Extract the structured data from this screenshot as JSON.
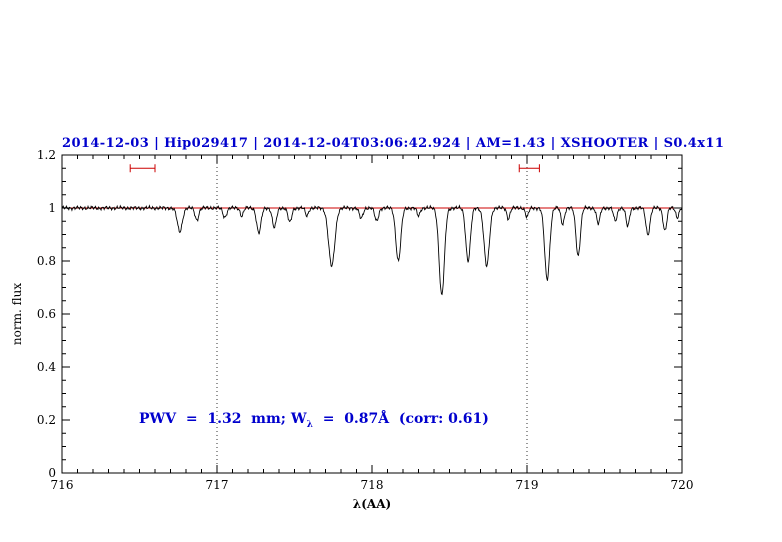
{
  "header": {
    "title": "2014-12-03 | Hip029417 | 2014-12-04T03:06:42.924 | AM=1.43 | XSHOOTER | S0.4x11",
    "color": "#0000cd"
  },
  "annotation": {
    "part1": "PWV  =  1.32  mm; W",
    "sub": "λ",
    "part2": "  =  0.87Å  (corr: 0.61)",
    "color": "#0000cd"
  },
  "chart_data": {
    "type": "line",
    "title": "2014-12-03 | Hip029417 | 2014-12-04T03:06:42.924 | AM=1.43 | XSHOOTER | S0.4x11",
    "xlabel": "λ(AA)",
    "ylabel": "norm. flux",
    "xlim": [
      716,
      720
    ],
    "ylim": [
      0,
      1.2
    ],
    "x_major_ticks": [
      716,
      717,
      718,
      719,
      720
    ],
    "x_tick_labels": [
      "716",
      "717",
      "718",
      "719",
      "720"
    ],
    "x_minor_step": 0.1,
    "y_major_ticks": [
      0,
      0.2,
      0.4,
      0.6,
      0.8,
      1.0,
      1.2
    ],
    "y_tick_labels": [
      "0",
      "0.2",
      "0.4",
      "0.6",
      "0.8",
      "1",
      "1.2"
    ],
    "y_minor_step": 0.05,
    "grid": false,
    "line_color": "#000000",
    "continuum": 1.0,
    "continuum_color": "#cc0000",
    "dotted_vlines": [
      717,
      719
    ],
    "vline_color": "#000000",
    "interval_markers": [
      {
        "x_start": 716.44,
        "x_end": 716.6,
        "y": 1.15,
        "color": "#cc0000"
      },
      {
        "x_start": 718.95,
        "x_end": 719.08,
        "y": 1.15,
        "color": "#cc0000"
      }
    ],
    "absorption_lines": [
      {
        "c": 716.76,
        "d": 0.09,
        "s": 0.016
      },
      {
        "c": 716.87,
        "d": 0.045,
        "s": 0.012
      },
      {
        "c": 717.05,
        "d": 0.035,
        "s": 0.012
      },
      {
        "c": 717.16,
        "d": 0.03,
        "s": 0.01
      },
      {
        "c": 717.27,
        "d": 0.095,
        "s": 0.014
      },
      {
        "c": 717.37,
        "d": 0.075,
        "s": 0.013
      },
      {
        "c": 717.47,
        "d": 0.055,
        "s": 0.012
      },
      {
        "c": 717.58,
        "d": 0.03,
        "s": 0.01
      },
      {
        "c": 717.74,
        "d": 0.22,
        "s": 0.02
      },
      {
        "c": 717.93,
        "d": 0.04,
        "s": 0.012
      },
      {
        "c": 718.03,
        "d": 0.05,
        "s": 0.012
      },
      {
        "c": 718.17,
        "d": 0.2,
        "s": 0.016
      },
      {
        "c": 718.3,
        "d": 0.03,
        "s": 0.01
      },
      {
        "c": 718.45,
        "d": 0.33,
        "s": 0.017
      },
      {
        "c": 718.62,
        "d": 0.2,
        "s": 0.015
      },
      {
        "c": 718.74,
        "d": 0.22,
        "s": 0.017
      },
      {
        "c": 718.88,
        "d": 0.04,
        "s": 0.01
      },
      {
        "c": 719.0,
        "d": 0.035,
        "s": 0.01
      },
      {
        "c": 719.13,
        "d": 0.27,
        "s": 0.016
      },
      {
        "c": 719.23,
        "d": 0.06,
        "s": 0.011
      },
      {
        "c": 719.33,
        "d": 0.18,
        "s": 0.014
      },
      {
        "c": 719.46,
        "d": 0.06,
        "s": 0.011
      },
      {
        "c": 719.57,
        "d": 0.05,
        "s": 0.011
      },
      {
        "c": 719.65,
        "d": 0.07,
        "s": 0.011
      },
      {
        "c": 719.78,
        "d": 0.1,
        "s": 0.013
      },
      {
        "c": 719.89,
        "d": 0.085,
        "s": 0.012
      },
      {
        "c": 719.97,
        "d": 0.035,
        "s": 0.01
      }
    ],
    "noise_components": [
      {
        "a": 0.004,
        "f": 43,
        "p": 0.0
      },
      {
        "a": 0.0028,
        "f": 101,
        "p": 1.9
      },
      {
        "a": 0.002,
        "f": 11,
        "p": 0.7
      }
    ],
    "samples": 1000
  }
}
